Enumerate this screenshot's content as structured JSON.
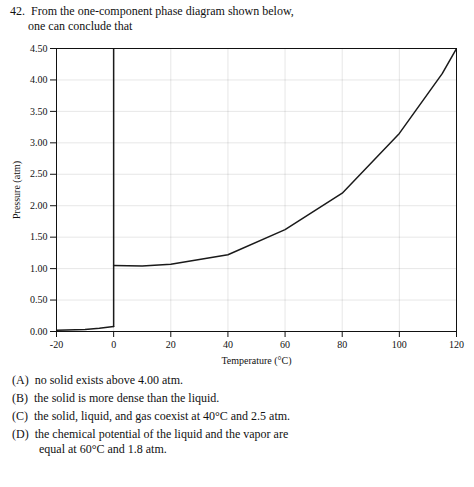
{
  "chart_data": {
    "type": "line",
    "title": [
      "42.  From the one-component phase diagram shown below,",
      "      one can conclude that"
    ],
    "xlabel": "Temperature (°C)",
    "ylabel": "Pressure (atm)",
    "xlim": [
      -20,
      120
    ],
    "ylim": [
      0.0,
      4.5
    ],
    "xticks": [
      -20,
      0,
      20,
      40,
      60,
      80,
      100,
      120
    ],
    "yticks": [
      {
        "value": 0.0,
        "label": "0.00"
      },
      {
        "value": 0.5,
        "label": "0.50"
      },
      {
        "value": 1.0,
        "label": "1.00"
      },
      {
        "value": 1.5,
        "label": "1.50"
      },
      {
        "value": 2.0,
        "label": "2.00"
      },
      {
        "value": 2.5,
        "label": "2.50"
      },
      {
        "value": 3.0,
        "label": "3.00"
      },
      {
        "value": 3.5,
        "label": "3.50"
      },
      {
        "value": 4.0,
        "label": "4.00"
      },
      {
        "value": 4.5,
        "label": "4.50"
      }
    ],
    "grid": true,
    "series": [
      {
        "x": [
          -20,
          -10,
          -5,
          0
        ],
        "values": [
          0.02,
          0.03,
          0.05,
          0.08
        ],
        "color": "#1a1a1a"
      },
      {
        "x": [
          0,
          0
        ],
        "values": [
          0.08,
          4.5
        ],
        "color": "#1a1a1a"
      },
      {
        "x": [
          0,
          10,
          20,
          40,
          60,
          80,
          100,
          115,
          120
        ],
        "values": [
          1.05,
          1.04,
          1.07,
          1.22,
          1.62,
          2.2,
          3.15,
          4.1,
          4.5
        ],
        "color": "#1a1a1a"
      }
    ],
    "annotations": [
      "(A)  no solid exists above 4.00 atm.",
      "(B)  the solid is more dense than the liquid.",
      "(C)  the solid, liquid, and gas coexist at 40°C and 2.5 atm.",
      "(D)  the chemical potential of the liquid and the vapor are\n         equal at 60°C and 1.8 atm."
    ]
  }
}
